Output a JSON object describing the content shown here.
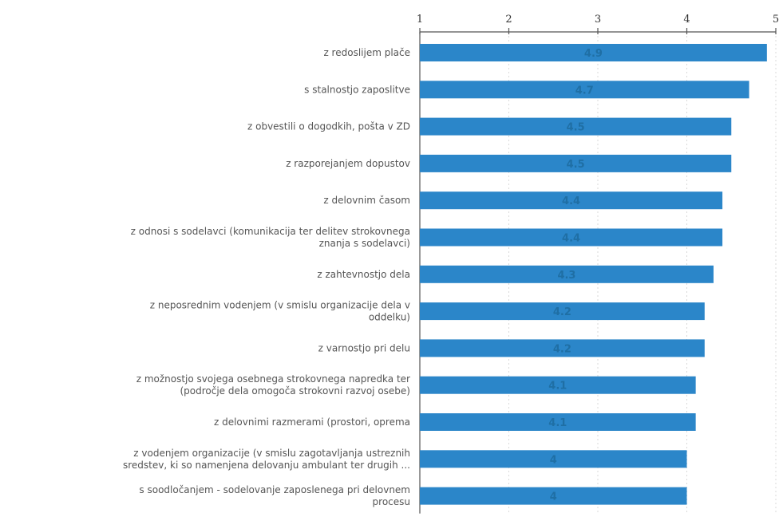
{
  "chart_data": {
    "type": "bar",
    "orientation": "horizontal",
    "title": "",
    "xlabel": "",
    "ylabel": "",
    "xlim": [
      1,
      5
    ],
    "x_ticks": [
      "1",
      "2",
      "3",
      "4",
      "5"
    ],
    "x_axis_position": "top",
    "grid": true,
    "legend": "none",
    "bar_color": "#2b86c9",
    "label_color": "#1f6fa5",
    "categories": [
      [
        "z redoslijem plače"
      ],
      [
        "s stalnostjo zaposlitve"
      ],
      [
        "z obvestili o dogodkih, pošta v ZD"
      ],
      [
        "z razporejanjem dopustov"
      ],
      [
        "z delovnim časom"
      ],
      [
        "z odnosi s sodelavci (komunikacija ter delitev strokovnega",
        "znanja s sodelavci)"
      ],
      [
        "z zahtevnostjo dela"
      ],
      [
        "z neposrednim vodenjem (v smislu organizacije dela v",
        "oddelku)"
      ],
      [
        "z varnostjo pri delu"
      ],
      [
        "z možnostjo svojega osebnega strokovnega napredka ter",
        "(področje dela omogoča strokovni razvoj osebe)"
      ],
      [
        "z delovnimi razmerami (prostori, oprema"
      ],
      [
        "z vodenjem organizacije (v smislu zagotavljanja ustreznih",
        "sredstev, ki so namenjena delovanju ambulant ter drugih ..."
      ],
      [
        "s soodločanjem - sodelovanje zaposlenega pri delovnem",
        "procesu"
      ]
    ],
    "values": [
      4.9,
      4.7,
      4.5,
      4.5,
      4.4,
      4.4,
      4.3,
      4.2,
      4.2,
      4.1,
      4.1,
      4,
      4
    ],
    "data_labels": [
      "4.9",
      "4.7",
      "4.5",
      "4.5",
      "4.4",
      "4.4",
      "4.3",
      "4.2",
      "4.2",
      "4.1",
      "4.1",
      "4",
      "4"
    ]
  }
}
